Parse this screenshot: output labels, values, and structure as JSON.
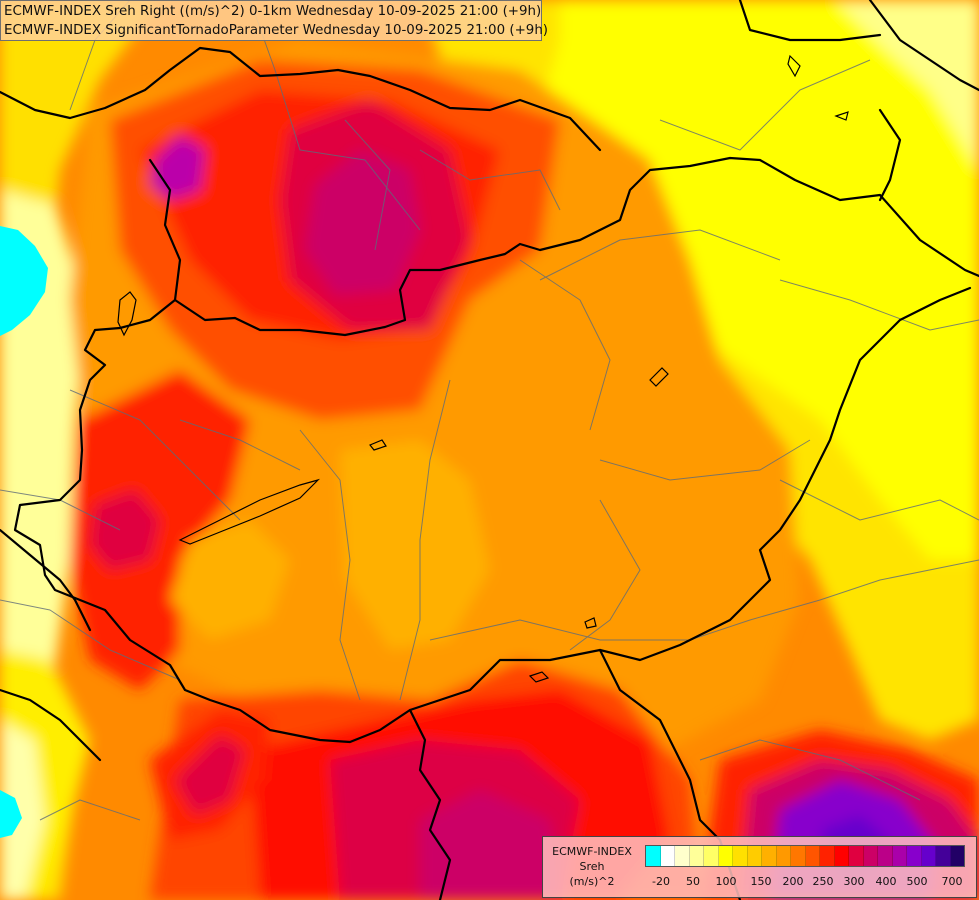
{
  "header": {
    "line1": "ECMWF-INDEX Sreh Right ((m/s)^2) 0-1km Wednesday 10-09-2025 21:00 (+9h)",
    "line2": "ECMWF-INDEX SignificantTornadoParameter Wednesday 10-09-2025 21:00 (+9h)"
  },
  "legend": {
    "title_line1": "ECMWF-INDEX",
    "title_line2": "Sreh",
    "title_line3": "(m/s)^2",
    "colors": [
      "#00ffff",
      "#ffffff",
      "#ffffcc",
      "#ffff99",
      "#ffff66",
      "#ffff00",
      "#ffe000",
      "#ffcc00",
      "#ffb000",
      "#ff9900",
      "#ff7700",
      "#ff5500",
      "#ff2200",
      "#ff0000",
      "#e00040",
      "#cc0066",
      "#bb0088",
      "#aa00aa",
      "#8800cc",
      "#6600cc",
      "#440099",
      "#220066"
    ],
    "tick_labels": [
      "-20",
      "50",
      "100",
      "150",
      "200",
      "250",
      "300",
      "400",
      "500",
      "700"
    ]
  }
}
